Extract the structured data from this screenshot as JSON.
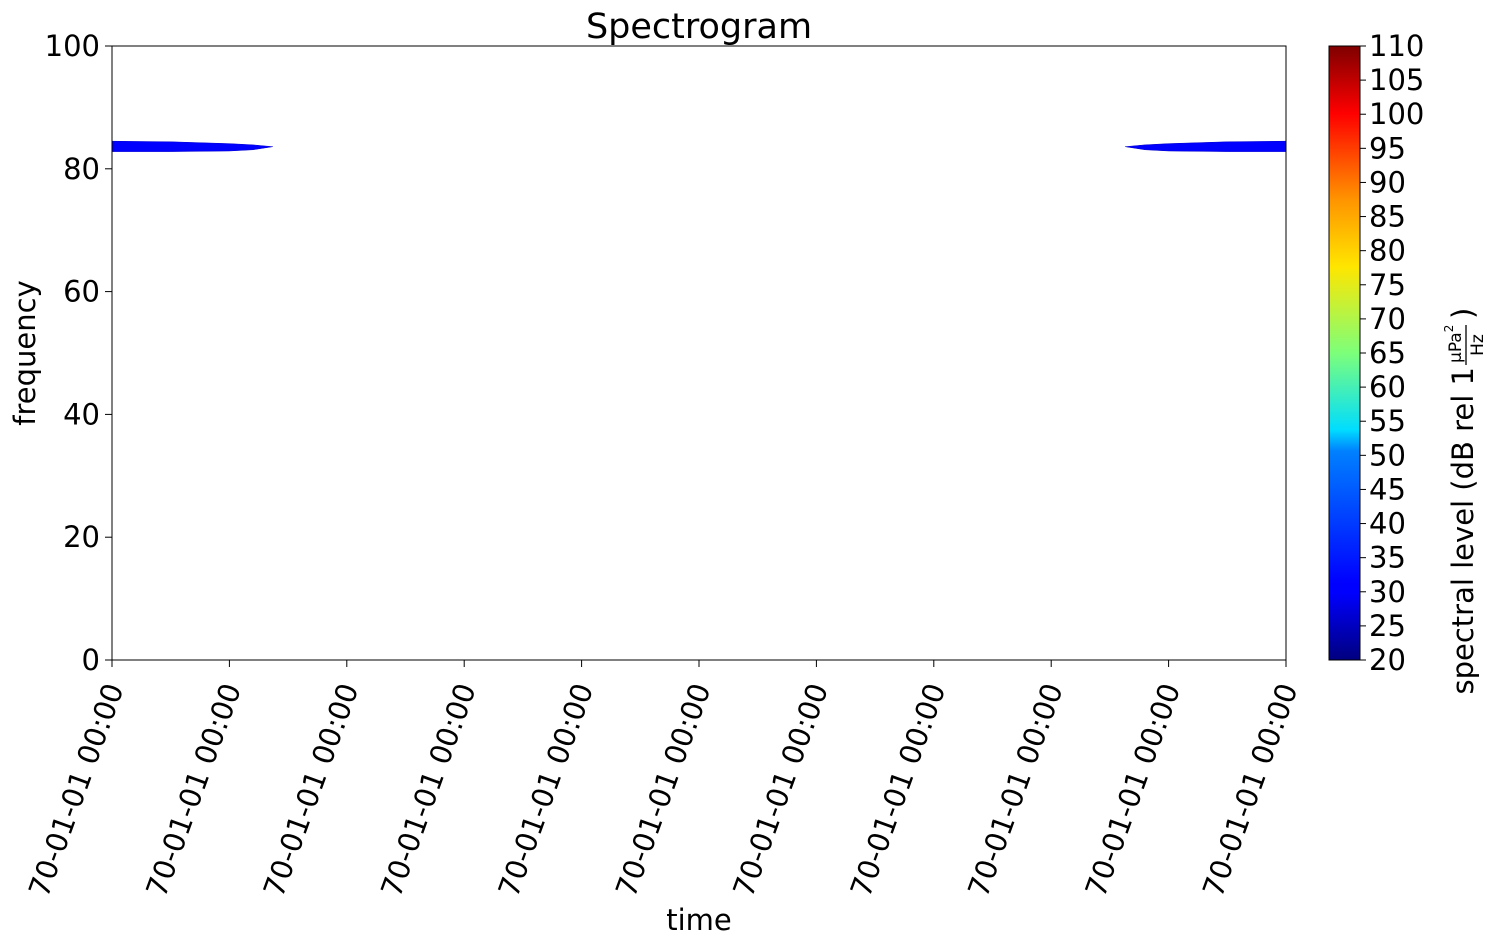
{
  "chart_data": {
    "type": "heatmap",
    "title": "Spectrogram",
    "xlabel": "time",
    "ylabel": "frequency",
    "x_tick_labels": [
      "70-01-01 00:00",
      "70-01-01 00:00",
      "70-01-01 00:00",
      "70-01-01 00:00",
      "70-01-01 00:00",
      "70-01-01 00:00",
      "70-01-01 00:00",
      "70-01-01 00:00",
      "70-01-01 00:00",
      "70-01-01 00:00",
      "70-01-01 00:00"
    ],
    "y_ticks": [
      0,
      20,
      40,
      60,
      80,
      100
    ],
    "ylim": [
      0,
      100
    ],
    "x_range": [
      0,
      10
    ],
    "colorbar": {
      "label_prefix": "spectral level (dB rel 1",
      "unit_num": "μPa",
      "unit_num_exp": "2",
      "unit_den": "Hz",
      "label_suffix": ")",
      "colormap": "jet",
      "range": [
        20,
        110
      ],
      "ticks": [
        20,
        25,
        30,
        35,
        40,
        45,
        50,
        55,
        60,
        65,
        70,
        75,
        80,
        85,
        90,
        95,
        100,
        105,
        110
      ]
    },
    "grid": false,
    "bands": [
      {
        "level_db": 29,
        "color": "#0000ff",
        "x": [
          0,
          0.5,
          1.0,
          1.2,
          1.37
        ],
        "f_low": [
          82.8,
          82.8,
          82.9,
          83.1,
          83.6
        ],
        "f_high": [
          84.5,
          84.4,
          84.1,
          83.9,
          83.6
        ]
      },
      {
        "level_db": 29,
        "color": "#0000ff",
        "x": [
          8.63,
          8.8,
          9.0,
          9.5,
          10
        ],
        "f_low": [
          83.6,
          83.1,
          82.9,
          82.8,
          82.8
        ],
        "f_high": [
          83.6,
          83.9,
          84.1,
          84.4,
          84.5
        ]
      }
    ]
  }
}
